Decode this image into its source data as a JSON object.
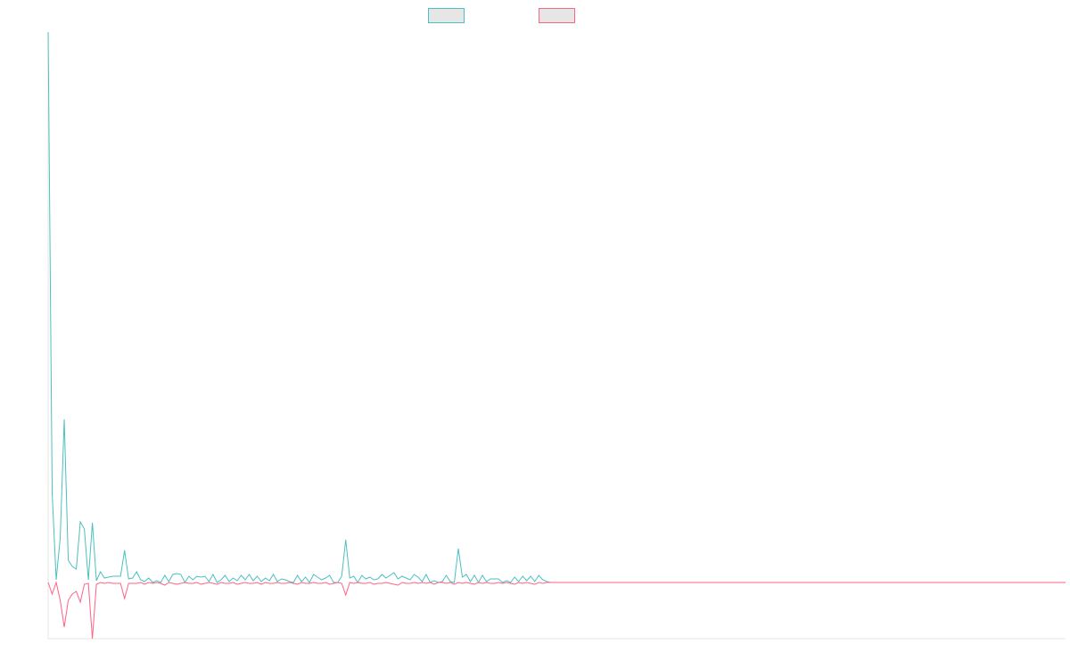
{
  "chart_data": {
    "type": "line",
    "series": [
      {
        "color": "#4bc0c0",
        "values": [
          617,
          100,
          3,
          50,
          183,
          25,
          18,
          15,
          68,
          60,
          3,
          67,
          2,
          12,
          5,
          6,
          7,
          7,
          7,
          36,
          4,
          5,
          12,
          3,
          1,
          5,
          0,
          2,
          0,
          8,
          1,
          9,
          10,
          9,
          0,
          7,
          3,
          7,
          6,
          7,
          1,
          9,
          0,
          3,
          8,
          1,
          5,
          2,
          8,
          3,
          9,
          2,
          7,
          1,
          5,
          2,
          9,
          1,
          4,
          3,
          1,
          0,
          8,
          1,
          6,
          0,
          9,
          6,
          3,
          5,
          8,
          0,
          0,
          7,
          48,
          5,
          7,
          0,
          8,
          4,
          6,
          3,
          4,
          9,
          5,
          8,
          11,
          4,
          7,
          5,
          3,
          9,
          6,
          1,
          9,
          0,
          2,
          0,
          1,
          8,
          1,
          0,
          38,
          6,
          9,
          1,
          8,
          0,
          8,
          1,
          4,
          4,
          4,
          0,
          2,
          0,
          6,
          1,
          7,
          2,
          7,
          1,
          8,
          3,
          1,
          0,
          0,
          0,
          0,
          0,
          0,
          0,
          0,
          0,
          0,
          0,
          0,
          0,
          0,
          0,
          0,
          0,
          0,
          0,
          0,
          0,
          0,
          0,
          0,
          0,
          0,
          0,
          0,
          0,
          0,
          0,
          0,
          0,
          0,
          0,
          0,
          0,
          0,
          0,
          0,
          0,
          0,
          0,
          0,
          0,
          0,
          0,
          0,
          0,
          0,
          0,
          0,
          0,
          0,
          0,
          0,
          0,
          0,
          0,
          0,
          0,
          0,
          0,
          0,
          0,
          0,
          0,
          0,
          0,
          0,
          0,
          0,
          0,
          0,
          0,
          0,
          0,
          0,
          0,
          0,
          0,
          0,
          0,
          0,
          0,
          0,
          0,
          0,
          0,
          0,
          0,
          0,
          0,
          0,
          0,
          0,
          0,
          0,
          0,
          0,
          0,
          0,
          0,
          0,
          0,
          0,
          0,
          0,
          0,
          0,
          0,
          0,
          0,
          0,
          0,
          0,
          0,
          0,
          0,
          0,
          0,
          0,
          0,
          0,
          0,
          0,
          0,
          0,
          0
        ]
      },
      {
        "color": "#ff6384",
        "values": [
          0,
          -13,
          0,
          -20,
          -50,
          -20,
          -13,
          -10,
          -22,
          -2,
          -1,
          -63,
          -2,
          0,
          -1,
          0,
          -1,
          -1,
          -1,
          -18,
          -1,
          -1,
          -1,
          0,
          -2,
          0,
          -1,
          0,
          -1,
          -3,
          0,
          -1,
          -2,
          -1,
          0,
          -1,
          -1,
          0,
          -2,
          -1,
          0,
          -1,
          -2,
          0,
          -1,
          -1,
          0,
          -2,
          -1,
          0,
          -1,
          -1,
          0,
          -2,
          0,
          -1,
          -1,
          0,
          -1,
          -1,
          0,
          -1,
          -2,
          0,
          -1,
          -1,
          0,
          -1,
          -1,
          0,
          -2,
          -1,
          0,
          -1,
          -14,
          0,
          -1,
          0,
          -1,
          -1,
          0,
          -2,
          -1,
          -1,
          0,
          -1,
          -2,
          -3,
          0,
          -1,
          -1,
          0,
          -1,
          0,
          -1,
          0,
          -2,
          0,
          0,
          -1,
          0,
          -2,
          0,
          -1,
          0,
          -1,
          -2,
          0,
          -1,
          0,
          -1,
          -1,
          0,
          -1,
          0,
          -1,
          -2,
          0,
          -1,
          0,
          -1,
          -2,
          0,
          -1,
          0,
          0,
          0,
          0,
          0,
          0,
          0,
          0,
          0,
          0,
          0,
          0,
          0,
          0,
          0,
          0,
          0,
          0,
          0,
          0,
          0,
          0,
          0,
          0,
          0,
          0,
          0,
          0,
          0,
          0,
          0,
          0,
          0,
          0,
          0,
          0,
          0,
          0,
          0,
          0,
          0,
          0,
          0,
          0,
          0,
          0,
          0,
          0,
          0,
          0,
          0,
          0,
          0,
          0,
          0,
          0,
          0,
          0,
          0,
          0,
          0,
          0,
          0,
          0,
          0,
          0,
          0,
          0,
          0,
          0,
          0,
          0,
          0,
          0,
          0,
          0,
          0,
          0,
          0,
          0,
          0,
          0,
          0,
          0,
          0,
          0,
          0,
          0,
          0,
          0,
          0,
          0,
          0,
          0,
          0,
          0,
          0,
          0,
          0,
          0,
          0,
          0,
          0,
          0,
          0,
          0,
          0,
          0,
          0,
          0,
          0,
          0,
          0,
          0,
          0,
          0,
          0,
          0,
          0,
          0,
          0,
          0,
          0,
          0,
          0,
          0,
          0,
          0,
          0,
          0
        ]
      }
    ],
    "ylim": [
      -63,
      617
    ]
  }
}
